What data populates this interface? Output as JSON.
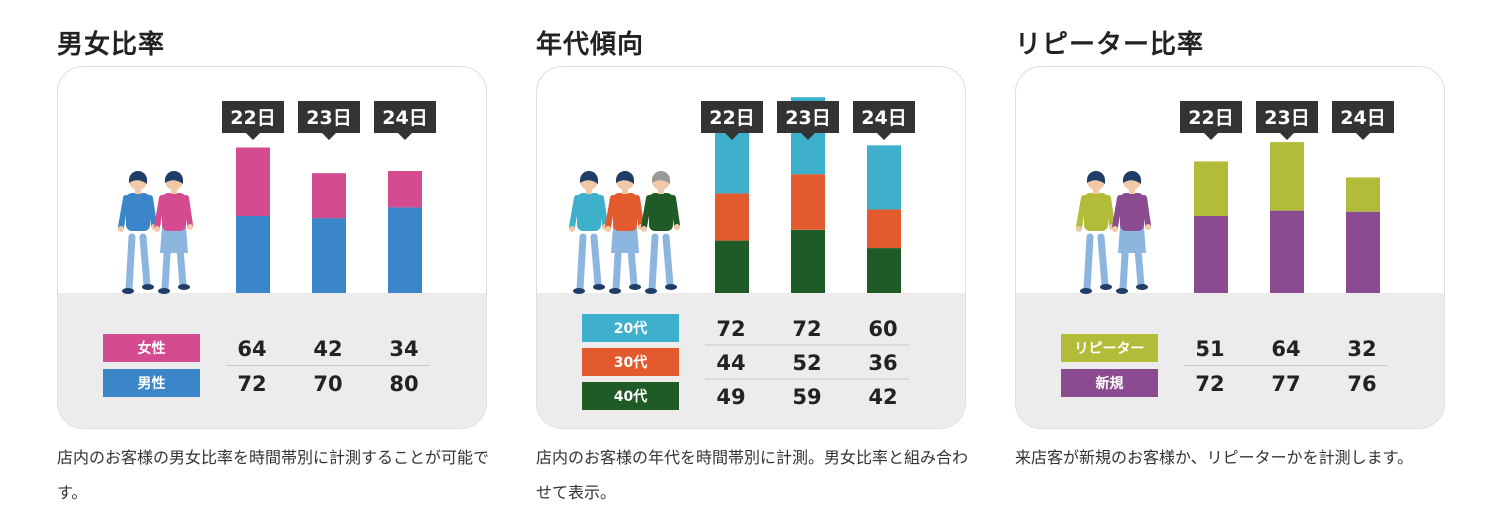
{
  "colors": {
    "female": "#d44b8f",
    "male": "#3a86c8",
    "age20": "#3fb0cc",
    "age30": "#e25a2d",
    "age40": "#1f5b26",
    "repeater": "#b3bc38",
    "new": "#8b4b91",
    "tag_bg": "#333333",
    "floor": "#ececec"
  },
  "panels": [
    {
      "title": "男女比率",
      "description": "店内のお客様の男女比率を時間帯別に計測することが可能です。",
      "chart_data": {
        "type": "bar",
        "stacked": true,
        "categories": [
          "22日",
          "23日",
          "24日"
        ],
        "series": [
          {
            "name": "男性",
            "values": [
              72,
              70,
              80
            ],
            "color": "#3a86c8"
          },
          {
            "name": "女性",
            "values": [
              64,
              42,
              34
            ],
            "color": "#d44b8f"
          }
        ],
        "legend_order": [
          {
            "label": "女性",
            "color": "#d44b8f",
            "values": [
              "64",
              "42",
              "34"
            ]
          },
          {
            "label": "男性",
            "color": "#3a86c8",
            "values": [
              "72",
              "70",
              "80"
            ]
          }
        ],
        "figures": [
          {
            "shirt": "#3a86c8",
            "pants": "#8cb6e0",
            "skirt": false,
            "hair": "#1f3d66"
          },
          {
            "shirt": "#d44b8f",
            "pants": "#8cb6e0",
            "skirt": true,
            "hair": "#1f3d66"
          }
        ]
      }
    },
    {
      "title": "年代傾向",
      "description": "店内のお客様の年代を時間帯別に計測。男女比率と組み合わせて表示。",
      "chart_data": {
        "type": "bar",
        "stacked": true,
        "categories": [
          "22日",
          "23日",
          "24日"
        ],
        "series": [
          {
            "name": "40代",
            "values": [
              49,
              59,
              42
            ],
            "color": "#1f5b26"
          },
          {
            "name": "30代",
            "values": [
              44,
              52,
              36
            ],
            "color": "#e25a2d"
          },
          {
            "name": "20代",
            "values": [
              72,
              72,
              60
            ],
            "color": "#3fb0cc"
          }
        ],
        "legend_order": [
          {
            "label": "20代",
            "color": "#3fb0cc",
            "values": [
              "72",
              "72",
              "60"
            ]
          },
          {
            "label": "30代",
            "color": "#e25a2d",
            "values": [
              "44",
              "52",
              "36"
            ]
          },
          {
            "label": "40代",
            "color": "#1f5b26",
            "values": [
              "49",
              "59",
              "42"
            ]
          }
        ],
        "figures": [
          {
            "shirt": "#3fb0cc",
            "pants": "#8cb6e0",
            "skirt": false,
            "hair": "#1f3d66"
          },
          {
            "shirt": "#e25a2d",
            "pants": "#8cb6e0",
            "skirt": true,
            "hair": "#1f3d66"
          },
          {
            "shirt": "#1f5b26",
            "pants": "#8cb6e0",
            "skirt": false,
            "hair": "#9a9a9a"
          }
        ]
      }
    },
    {
      "title": "リピーター比率",
      "description": "来店客が新規のお客様か、リピーターかを計測します。",
      "chart_data": {
        "type": "bar",
        "stacked": true,
        "categories": [
          "22日",
          "23日",
          "24日"
        ],
        "series": [
          {
            "name": "新規",
            "values": [
              72,
              77,
              76
            ],
            "color": "#8b4b91"
          },
          {
            "name": "リピーター",
            "values": [
              51,
              64,
              32
            ],
            "color": "#b3bc38"
          }
        ],
        "legend_order": [
          {
            "label": "リピーター",
            "color": "#b3bc38",
            "values": [
              "51",
              "64",
              "32"
            ]
          },
          {
            "label": "新規",
            "color": "#8b4b91",
            "values": [
              "72",
              "77",
              "76"
            ]
          }
        ],
        "figures": [
          {
            "shirt": "#b3bc38",
            "pants": "#8cb6e0",
            "skirt": false,
            "hair": "#1f3d66"
          },
          {
            "shirt": "#8b4b91",
            "pants": "#8cb6e0",
            "skirt": true,
            "hair": "#1f3d66"
          }
        ]
      }
    }
  ]
}
